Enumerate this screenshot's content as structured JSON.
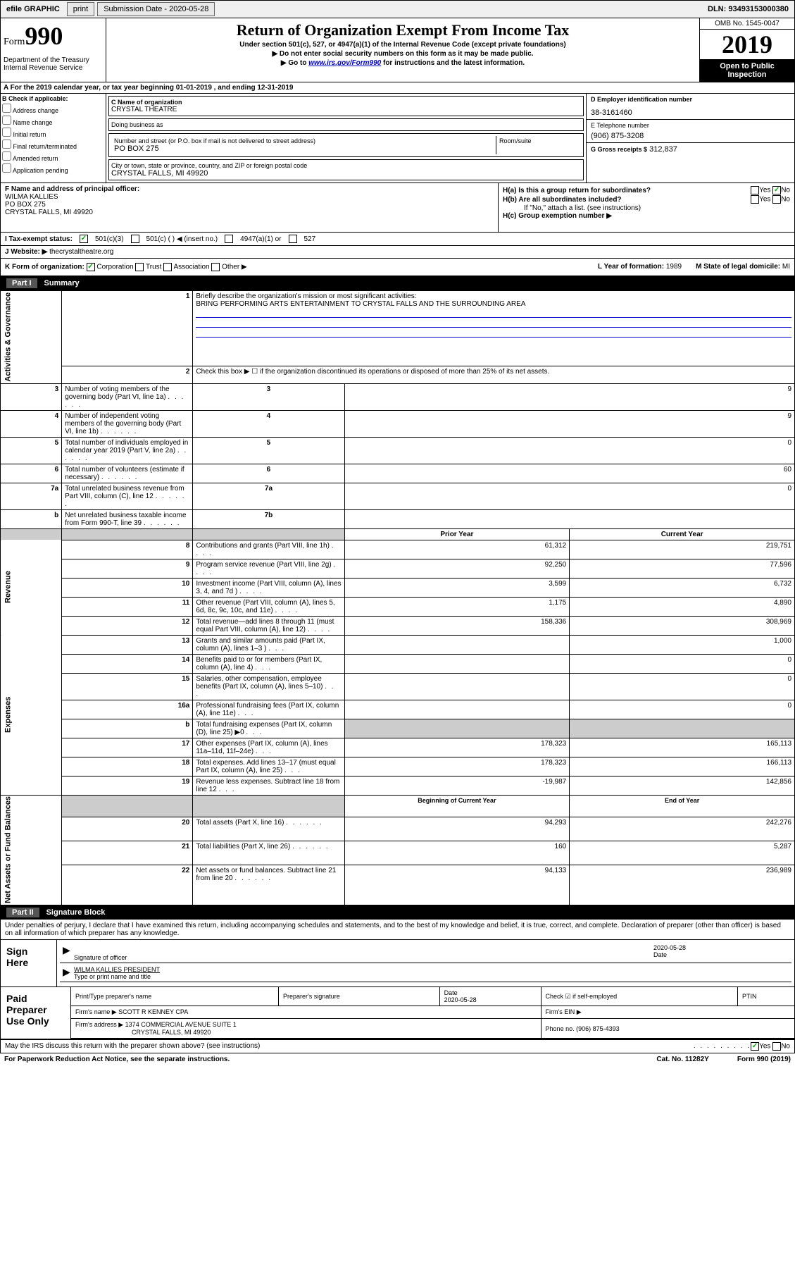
{
  "topbar": {
    "efile": "efile GRAPHIC",
    "print": "print",
    "submission_label": "Submission Date - 2020-05-28",
    "dln": "DLN: 93493153000380"
  },
  "header": {
    "form_label": "Form",
    "form_number": "990",
    "dept": "Department of the Treasury\nInternal Revenue Service",
    "title": "Return of Organization Exempt From Income Tax",
    "subtitle": "Under section 501(c), 527, or 4947(a)(1) of the Internal Revenue Code (except private foundations)",
    "warn": "▶ Do not enter social security numbers on this form as it may be made public.",
    "goto": "▶ Go to www.irs.gov/Form990 for instructions and the latest information.",
    "goto_link": "www.irs.gov/Form990",
    "omb": "OMB No. 1545-0047",
    "year": "2019",
    "open": "Open to Public Inspection"
  },
  "period": {
    "text_a": "A For the 2019 calendar year, or tax year beginning ",
    "begin": "01-01-2019",
    "text_b": " , and ending ",
    "end": "12-31-2019"
  },
  "box_b": {
    "label": "B Check if applicable:",
    "items": [
      "Address change",
      "Name change",
      "Initial return",
      "Final return/terminated",
      "Amended return",
      "Application pending"
    ]
  },
  "box_c": {
    "label": "C Name of organization",
    "name": "CRYSTAL THEATRE",
    "dba_label": "Doing business as",
    "dba": "",
    "street_label": "Number and street (or P.O. box if mail is not delivered to street address)",
    "street": "PO BOX 275",
    "room_label": "Room/suite",
    "room": "",
    "city_label": "City or town, state or province, country, and ZIP or foreign postal code",
    "city": "CRYSTAL FALLS, MI  49920"
  },
  "box_d": {
    "label": "D Employer identification number",
    "ein": "38-3161460"
  },
  "box_e": {
    "label": "E Telephone number",
    "phone": "(906) 875-3208"
  },
  "box_g": {
    "label": "G Gross receipts $",
    "amount": "312,837"
  },
  "box_f": {
    "label": "F  Name and address of principal officer:",
    "name": "WILMA KALLIES",
    "street": "PO BOX 275",
    "city": "CRYSTAL FALLS, MI  49920"
  },
  "box_h": {
    "a": "H(a)  Is this a group return for subordinates?",
    "b": "H(b)  Are all subordinates included?",
    "note": "If \"No,\" attach a list. (see instructions)",
    "c": "H(c)  Group exemption number ▶"
  },
  "box_i": {
    "label": "I  Tax-exempt status:",
    "opts": [
      "501(c)(3)",
      "501(c) (  ) ◀ (insert no.)",
      "4947(a)(1) or",
      "527"
    ]
  },
  "box_j": {
    "label": "J  Website: ▶",
    "val": "thecrystaltheatre.org"
  },
  "box_k": {
    "label": "K Form of organization:",
    "opts": [
      "Corporation",
      "Trust",
      "Association",
      "Other ▶"
    ]
  },
  "box_l": {
    "label": "L Year of formation:",
    "val": "1989"
  },
  "box_m": {
    "label": "M State of legal domicile:",
    "val": "MI"
  },
  "part1": {
    "label": "Part I",
    "title": "Summary"
  },
  "summary": {
    "sides": [
      "Activities & Governance",
      "Revenue",
      "Expenses",
      "Net Assets or Fund Balances"
    ],
    "line1_label": "Briefly describe the organization's mission or most significant activities:",
    "line1_val": "BRING PERFORMING ARTS ENTERTAINMENT TO CRYSTAL FALLS AND THE SURROUNDING AREA",
    "line2": "Check this box ▶ ☐ if the organization discontinued its operations or disposed of more than 25% of its net assets.",
    "rows_gov": [
      {
        "n": "3",
        "t": "Number of voting members of the governing body (Part VI, line 1a)",
        "c": "3",
        "v": "9"
      },
      {
        "n": "4",
        "t": "Number of independent voting members of the governing body (Part VI, line 1b)",
        "c": "4",
        "v": "9"
      },
      {
        "n": "5",
        "t": "Total number of individuals employed in calendar year 2019 (Part V, line 2a)",
        "c": "5",
        "v": "0"
      },
      {
        "n": "6",
        "t": "Total number of volunteers (estimate if necessary)",
        "c": "6",
        "v": "60"
      },
      {
        "n": "7a",
        "t": "Total unrelated business revenue from Part VIII, column (C), line 12",
        "c": "7a",
        "v": "0"
      },
      {
        "n": "b",
        "t": "Net unrelated business taxable income from Form 990-T, line 39",
        "c": "7b",
        "v": ""
      }
    ],
    "col_headers": {
      "prior": "Prior Year",
      "current": "Current Year"
    },
    "rows_rev": [
      {
        "n": "8",
        "t": "Contributions and grants (Part VIII, line 1h)",
        "p": "61,312",
        "c": "219,751"
      },
      {
        "n": "9",
        "t": "Program service revenue (Part VIII, line 2g)",
        "p": "92,250",
        "c": "77,596"
      },
      {
        "n": "10",
        "t": "Investment income (Part VIII, column (A), lines 3, 4, and 7d )",
        "p": "3,599",
        "c": "6,732"
      },
      {
        "n": "11",
        "t": "Other revenue (Part VIII, column (A), lines 5, 6d, 8c, 9c, 10c, and 11e)",
        "p": "1,175",
        "c": "4,890"
      },
      {
        "n": "12",
        "t": "Total revenue—add lines 8 through 11 (must equal Part VIII, column (A), line 12)",
        "p": "158,336",
        "c": "308,969"
      }
    ],
    "rows_exp": [
      {
        "n": "13",
        "t": "Grants and similar amounts paid (Part IX, column (A), lines 1–3 )",
        "p": "",
        "c": "1,000"
      },
      {
        "n": "14",
        "t": "Benefits paid to or for members (Part IX, column (A), line 4)",
        "p": "",
        "c": "0"
      },
      {
        "n": "15",
        "t": "Salaries, other compensation, employee benefits (Part IX, column (A), lines 5–10)",
        "p": "",
        "c": "0"
      },
      {
        "n": "16a",
        "t": "Professional fundraising fees (Part IX, column (A), line 11e)",
        "p": "",
        "c": "0"
      },
      {
        "n": "b",
        "t": "Total fundraising expenses (Part IX, column (D), line 25) ▶0",
        "p": "shaded",
        "c": "shaded"
      },
      {
        "n": "17",
        "t": "Other expenses (Part IX, column (A), lines 11a–11d, 11f–24e)",
        "p": "178,323",
        "c": "165,113"
      },
      {
        "n": "18",
        "t": "Total expenses. Add lines 13–17 (must equal Part IX, column (A), line 25)",
        "p": "178,323",
        "c": "166,113"
      },
      {
        "n": "19",
        "t": "Revenue less expenses. Subtract line 18 from line 12",
        "p": "-19,987",
        "c": "142,856"
      }
    ],
    "col_headers2": {
      "begin": "Beginning of Current Year",
      "end": "End of Year"
    },
    "rows_net": [
      {
        "n": "20",
        "t": "Total assets (Part X, line 16)",
        "p": "94,293",
        "c": "242,276"
      },
      {
        "n": "21",
        "t": "Total liabilities (Part X, line 26)",
        "p": "160",
        "c": "5,287"
      },
      {
        "n": "22",
        "t": "Net assets or fund balances. Subtract line 21 from line 20",
        "p": "94,133",
        "c": "236,989"
      }
    ]
  },
  "part2": {
    "label": "Part II",
    "title": "Signature Block"
  },
  "sig": {
    "declaration": "Under penalties of perjury, I declare that I have examined this return, including accompanying schedules and statements, and to the best of my knowledge and belief, it is true, correct, and complete. Declaration of preparer (other than officer) is based on all information of which preparer has any knowledge.",
    "date": "2020-05-28",
    "sig_of_officer": "Signature of officer",
    "date_label": "Date",
    "officer_name": "WILMA KALLIES  PRESIDENT",
    "type_name": "Type or print name and title"
  },
  "paid": {
    "title": "Paid Preparer Use Only",
    "h": [
      "Print/Type preparer's name",
      "Preparer's signature",
      "Date",
      "Check ☑ if self-employed",
      "PTIN"
    ],
    "date": "2020-05-28",
    "firm_name_label": "Firm's name    ▶",
    "firm_name": "SCOTT R KENNEY CPA",
    "firm_ein_label": "Firm's EIN ▶",
    "firm_addr_label": "Firm's address ▶",
    "firm_addr1": "1374 COMMERCIAL AVENUE SUITE 1",
    "firm_addr2": "CRYSTAL FALLS, MI  49920",
    "phone_label": "Phone no.",
    "phone": "(906) 875-4393"
  },
  "discuss": "May the IRS discuss this return with the preparer shown above? (see instructions)",
  "footer": {
    "left": "For Paperwork Reduction Act Notice, see the separate instructions.",
    "mid": "Cat. No. 11282Y",
    "right": "Form 990 (2019)"
  },
  "colors": {
    "link": "#0000cc",
    "shaded": "#cccccc",
    "black": "#000000",
    "check_green": "#00aa00"
  }
}
